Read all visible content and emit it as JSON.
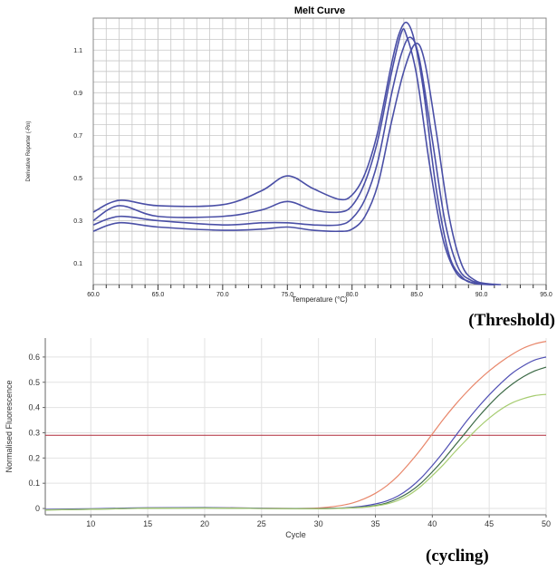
{
  "chart_data": [
    {
      "type": "line",
      "title": "Melt Curve",
      "xlabel": "Temperature (°C)",
      "ylabel": "Derivative Reporter (-Rn)",
      "xlim": [
        60,
        95
      ],
      "ylim": [
        0,
        1.25
      ],
      "x_ticks": [
        "60.0",
        "65.0",
        "70.0",
        "75.0",
        "80.0",
        "85.0",
        "90.0",
        "95.0"
      ],
      "y_ticks": [
        "0.1",
        "0.3",
        "0.5",
        "0.7",
        "0.9",
        "1.1"
      ],
      "grid": true,
      "colors": {
        "series": "#4a4fa6",
        "grid": "#c8c8c8",
        "axis": "#000000"
      },
      "series": [
        {
          "x": [
            60,
            62,
            65,
            70,
            73,
            75,
            77,
            79,
            80,
            81,
            82,
            83,
            83.6,
            84.2,
            84.8,
            85.5,
            86.5,
            87.5,
            88.5,
            89.5,
            91
          ],
          "y": [
            0.34,
            0.395,
            0.37,
            0.375,
            0.44,
            0.51,
            0.45,
            0.4,
            0.42,
            0.52,
            0.72,
            1.02,
            1.17,
            1.23,
            1.15,
            0.92,
            0.45,
            0.14,
            0.035,
            0.005,
            0
          ]
        },
        {
          "x": [
            60,
            62,
            65,
            70,
            73,
            75,
            77,
            79,
            80,
            81,
            82,
            83,
            83.8,
            84.2,
            85,
            86,
            87,
            88,
            89,
            90,
            91
          ],
          "y": [
            0.3,
            0.37,
            0.32,
            0.32,
            0.35,
            0.39,
            0.35,
            0.34,
            0.37,
            0.48,
            0.68,
            0.98,
            1.18,
            1.17,
            0.98,
            0.56,
            0.22,
            0.06,
            0.015,
            0.003,
            0
          ]
        },
        {
          "x": [
            60,
            62,
            65,
            70,
            73,
            75,
            77,
            79,
            80,
            81,
            82,
            83,
            83.8,
            84.5,
            85.2,
            86.2,
            87.2,
            88.2,
            89.2,
            90.2,
            91
          ],
          "y": [
            0.28,
            0.32,
            0.3,
            0.28,
            0.29,
            0.29,
            0.28,
            0.28,
            0.31,
            0.4,
            0.58,
            0.88,
            1.08,
            1.16,
            1.06,
            0.68,
            0.29,
            0.08,
            0.02,
            0.004,
            0
          ]
        },
        {
          "x": [
            60,
            62,
            65,
            70,
            73,
            75,
            77,
            79,
            80,
            81,
            82,
            83,
            84,
            84.9,
            85.6,
            86.5,
            87.5,
            88.5,
            89.5,
            90.5,
            91.5
          ],
          "y": [
            0.25,
            0.29,
            0.27,
            0.255,
            0.26,
            0.27,
            0.255,
            0.25,
            0.26,
            0.32,
            0.47,
            0.75,
            1.0,
            1.13,
            1.05,
            0.72,
            0.32,
            0.09,
            0.02,
            0.004,
            0
          ]
        }
      ]
    },
    {
      "type": "line",
      "title": "",
      "xlabel": "Cycle",
      "ylabel": "Normalised Fluorescence",
      "xlim": [
        6,
        50
      ],
      "ylim": [
        -0.025,
        0.675
      ],
      "x_ticks": [
        "10",
        "15",
        "20",
        "25",
        "30",
        "35",
        "40",
        "45",
        "50"
      ],
      "y_ticks": [
        "0",
        "0.1",
        "0.2",
        "0.3",
        "0.4",
        "0.5",
        "0.6"
      ],
      "grid": true,
      "threshold": 0.29,
      "caption": "(Threshold)",
      "colors": {
        "threshold": "#b02a3a",
        "grid": "#e2e2e2",
        "axis": "#666666"
      },
      "series": [
        {
          "color": "#e8866a",
          "x": [
            6,
            10,
            15,
            20,
            25,
            28,
            30,
            31,
            32,
            33,
            34,
            35,
            36,
            37,
            38,
            39,
            40,
            41,
            42,
            43,
            44,
            45,
            46,
            47,
            48,
            49,
            50
          ],
          "y": [
            -0.005,
            -0.002,
            0.002,
            0.003,
            0.001,
            0.0,
            0.002,
            0.006,
            0.012,
            0.022,
            0.038,
            0.06,
            0.09,
            0.13,
            0.18,
            0.235,
            0.295,
            0.355,
            0.41,
            0.46,
            0.505,
            0.545,
            0.58,
            0.61,
            0.635,
            0.652,
            0.662
          ]
        },
        {
          "color": "#5050b4",
          "x": [
            6,
            10,
            15,
            20,
            25,
            30,
            32,
            33,
            34,
            35,
            36,
            37,
            38,
            39,
            40,
            41,
            42,
            43,
            44,
            45,
            46,
            47,
            48,
            49,
            50
          ],
          "y": [
            -0.004,
            -0.001,
            0.003,
            0.004,
            0.001,
            0.0,
            0.002,
            0.005,
            0.01,
            0.018,
            0.03,
            0.05,
            0.08,
            0.12,
            0.17,
            0.225,
            0.285,
            0.345,
            0.4,
            0.45,
            0.495,
            0.535,
            0.565,
            0.588,
            0.6
          ]
        },
        {
          "color": "#3c6a46",
          "x": [
            6,
            10,
            15,
            20,
            25,
            30,
            32,
            34,
            35,
            36,
            37,
            38,
            39,
            40,
            41,
            42,
            43,
            44,
            45,
            46,
            47,
            48,
            49,
            50
          ],
          "y": [
            -0.006,
            -0.003,
            0.001,
            0.002,
            0.0,
            -0.001,
            0.001,
            0.006,
            0.012,
            0.022,
            0.04,
            0.065,
            0.1,
            0.145,
            0.195,
            0.25,
            0.305,
            0.36,
            0.41,
            0.455,
            0.492,
            0.522,
            0.545,
            0.56
          ]
        },
        {
          "color": "#a6cc70",
          "x": [
            6,
            10,
            15,
            20,
            25,
            30,
            32,
            34,
            35,
            36,
            37,
            38,
            39,
            40,
            41,
            42,
            43,
            44,
            45,
            46,
            47,
            48,
            49,
            50
          ],
          "y": [
            -0.006,
            -0.003,
            0.001,
            0.002,
            0.0,
            -0.001,
            0.001,
            0.005,
            0.01,
            0.018,
            0.032,
            0.055,
            0.088,
            0.13,
            0.175,
            0.225,
            0.272,
            0.318,
            0.358,
            0.392,
            0.418,
            0.435,
            0.447,
            0.452
          ]
        }
      ]
    }
  ],
  "captions": {
    "threshold": "(Threshold)",
    "cycling": "(cycling)"
  }
}
